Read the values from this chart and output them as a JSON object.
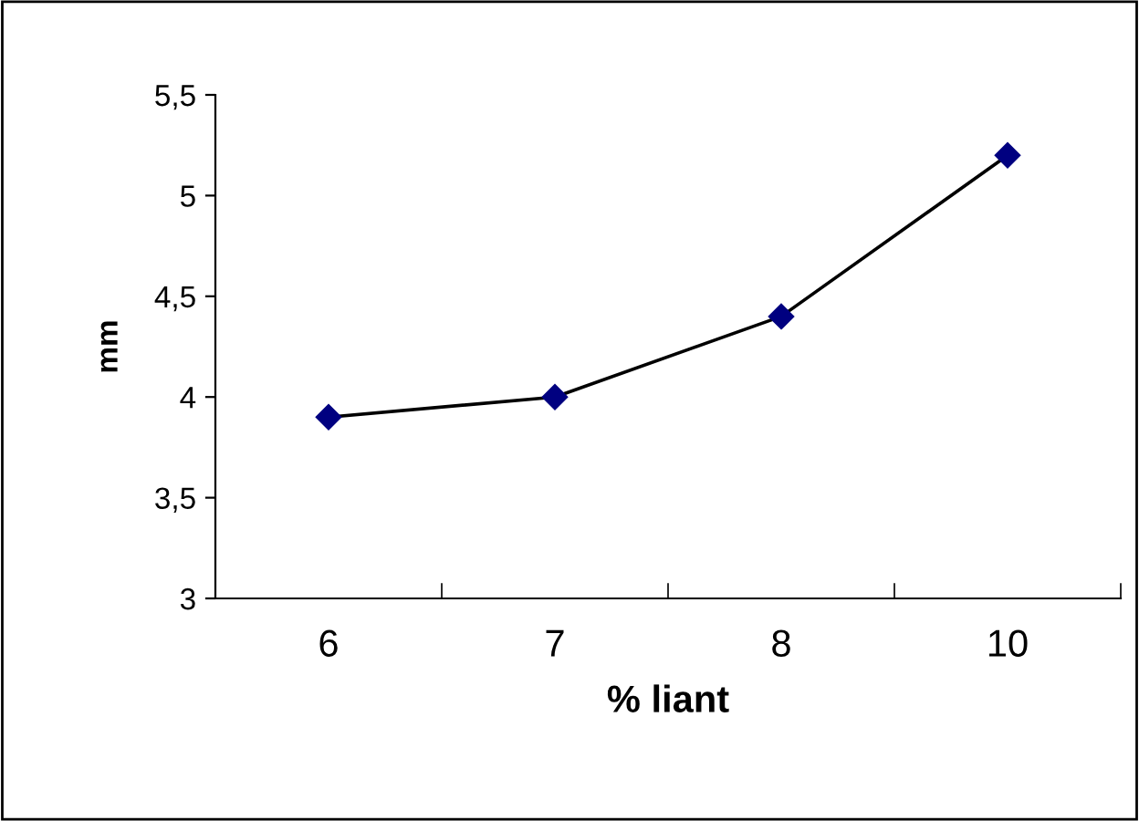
{
  "chart_data": {
    "type": "line",
    "xlabel": "% liant",
    "ylabel": "mm",
    "categories": [
      "6",
      "7",
      "8",
      "10"
    ],
    "series": [
      {
        "color": "#000080",
        "values": [
          3.9,
          4.0,
          4.4,
          5.2
        ]
      }
    ],
    "ylim": [
      3,
      5.5
    ],
    "yticks": [
      3,
      {
        "value": 3.5,
        "label": "3,5"
      },
      4,
      {
        "value": 4.5,
        "label": "4,5"
      },
      5,
      {
        "value": 5.5,
        "label": "5,5"
      }
    ],
    "grid": false,
    "legend": false,
    "marker": "diamond",
    "line_style": "solid"
  }
}
